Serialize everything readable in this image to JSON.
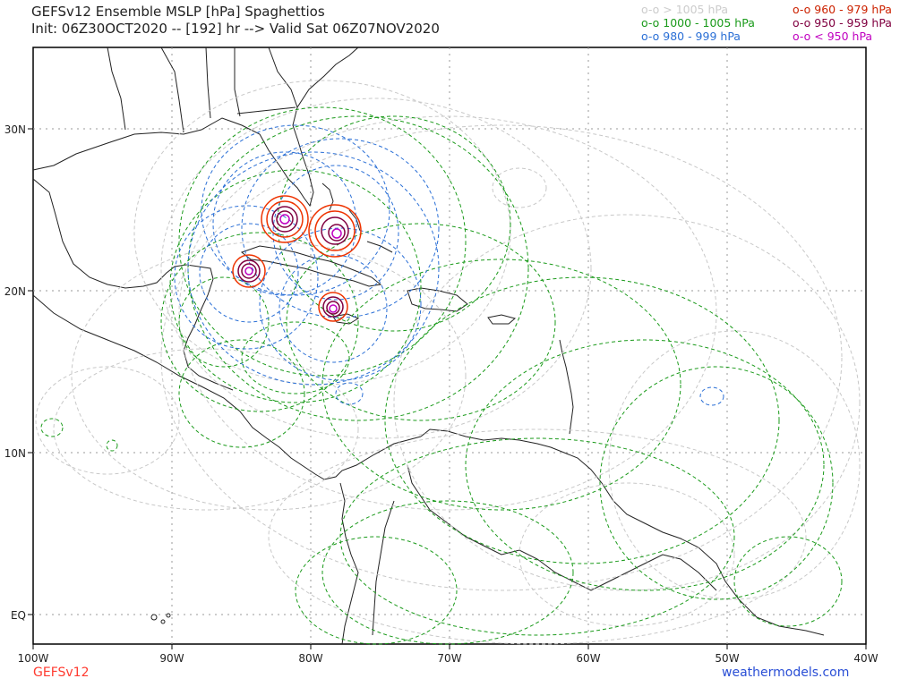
{
  "header": {
    "title_line1": "GEFSv12 Ensemble MSLP [hPa] Spaghettios",
    "title_line2": "Init: 06Z30OCT2020 -- [192] hr --> Valid Sat 06Z07NOV2020"
  },
  "legend": {
    "left": [
      {
        "text": "o-o > 1005 hPa",
        "color": "#cccccc"
      },
      {
        "text": "o-o 1000 - 1005 hPa",
        "color": "#1a9a1a"
      },
      {
        "text": "o-o 980 - 999 hPa",
        "color": "#2a6fd6"
      }
    ],
    "right": [
      {
        "text": "o-o 960 - 979 hPa",
        "color": "#cc2200"
      },
      {
        "text": "o-o 950 - 959 hPa",
        "color": "#800040"
      },
      {
        "text": "o-o < 950 hPa",
        "color": "#c000c0"
      }
    ]
  },
  "axes": {
    "lat_labels": [
      "30N",
      "20N",
      "10N",
      "EQ"
    ],
    "lon_labels": [
      "100W",
      "90W",
      "80W",
      "70W",
      "60W",
      "50W",
      "40W"
    ]
  },
  "footer": {
    "left": "GEFSv12",
    "right": "weathermodels.com",
    "left_color": "#ff3b30",
    "right_color": "#2a4fd6"
  }
}
